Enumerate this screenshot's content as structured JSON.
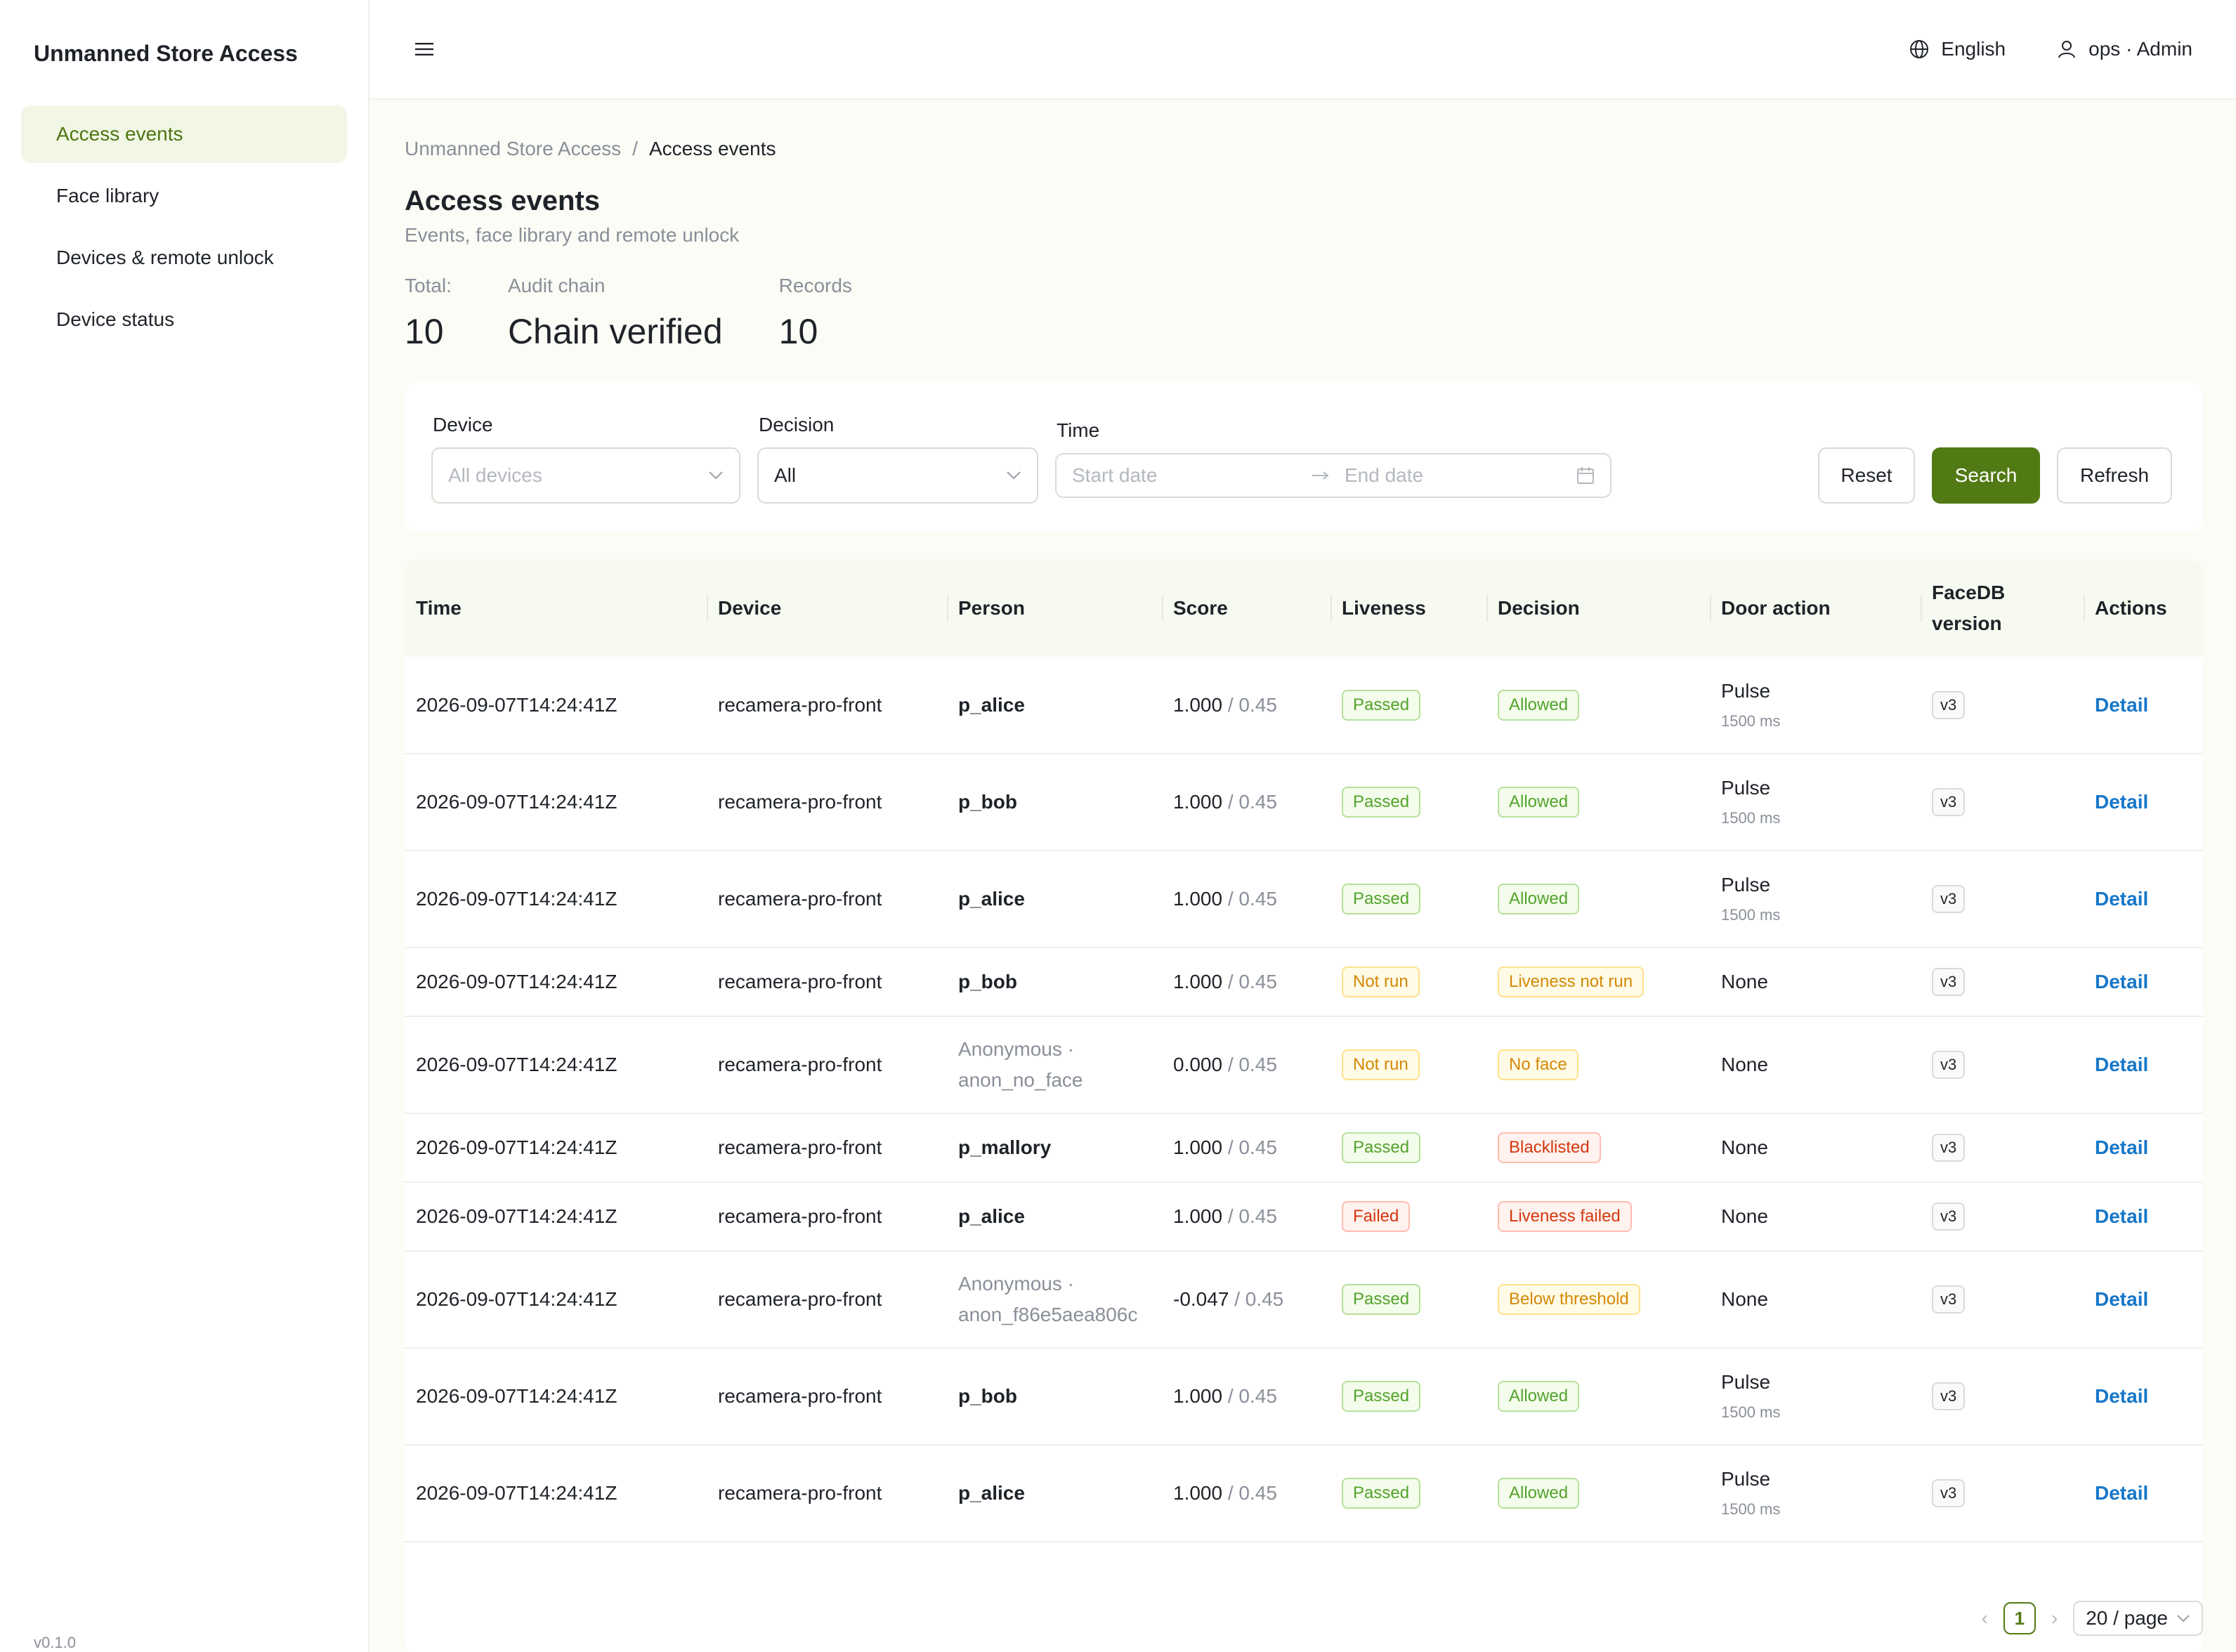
{
  "sidebar": {
    "brand": "Unmanned Store Access",
    "items": [
      {
        "label": "Access events"
      },
      {
        "label": "Face library"
      },
      {
        "label": "Devices & remote unlock"
      },
      {
        "label": "Device status"
      }
    ],
    "version": "v0.1.0"
  },
  "topbar": {
    "language": "English",
    "user": "ops · Admin"
  },
  "breadcrumb": {
    "root": "Unmanned Store Access",
    "separator": "/",
    "current": "Access events"
  },
  "page": {
    "title": "Access events",
    "subtitle": "Events, face library and remote unlock"
  },
  "stats": [
    {
      "label": "Total:",
      "value": "10"
    },
    {
      "label": "Audit chain",
      "value": "Chain verified"
    },
    {
      "label": "Records",
      "value": "10"
    }
  ],
  "filters": {
    "device_label": "Device",
    "device_placeholder": "All devices",
    "decision_label": "Decision",
    "decision_value": "All",
    "time_label": "Time",
    "start_placeholder": "Start date",
    "end_placeholder": "End date",
    "reset": "Reset",
    "search": "Search",
    "refresh": "Refresh"
  },
  "table": {
    "headers": {
      "time": "Time",
      "device": "Device",
      "person": "Person",
      "score": "Score",
      "liveness": "Liveness",
      "decision": "Decision",
      "door": "Door action",
      "facedb_1": "FaceDB",
      "facedb_2": "version",
      "actions": "Actions"
    },
    "rows": [
      {
        "time": "2026-09-07T14:24:41Z",
        "device": "recamera-pro-front",
        "person": "p_alice",
        "score": "1.000",
        "threshold": "/ 0.45",
        "liveness": "Passed",
        "decision": "Allowed",
        "door": "Pulse",
        "door_sub": "1500 ms",
        "version": "v3",
        "action": "Detail"
      },
      {
        "time": "2026-09-07T14:24:41Z",
        "device": "recamera-pro-front",
        "person": "p_bob",
        "score": "1.000",
        "threshold": "/ 0.45",
        "liveness": "Passed",
        "decision": "Allowed",
        "door": "Pulse",
        "door_sub": "1500 ms",
        "version": "v3",
        "action": "Detail"
      },
      {
        "time": "2026-09-07T14:24:41Z",
        "device": "recamera-pro-front",
        "person": "p_alice",
        "score": "1.000",
        "threshold": "/ 0.45",
        "liveness": "Passed",
        "decision": "Allowed",
        "door": "Pulse",
        "door_sub": "1500 ms",
        "version": "v3",
        "action": "Detail"
      },
      {
        "time": "2026-09-07T14:24:41Z",
        "device": "recamera-pro-front",
        "person": "p_bob",
        "score": "1.000",
        "threshold": "/ 0.45",
        "liveness": "Not run",
        "decision": "Liveness not run",
        "door": "None",
        "door_sub": "",
        "version": "v3",
        "action": "Detail"
      },
      {
        "time": "2026-09-07T14:24:41Z",
        "device": "recamera-pro-front",
        "person_anon_1": "Anonymous ·",
        "person_anon_2": "anon_no_face",
        "score": "0.000",
        "threshold": "/ 0.45",
        "liveness": "Not run",
        "decision": "No face",
        "door": "None",
        "door_sub": "",
        "version": "v3",
        "action": "Detail"
      },
      {
        "time": "2026-09-07T14:24:41Z",
        "device": "recamera-pro-front",
        "person": "p_mallory",
        "score": "1.000",
        "threshold": "/ 0.45",
        "liveness": "Passed",
        "decision": "Blacklisted",
        "door": "None",
        "door_sub": "",
        "version": "v3",
        "action": "Detail"
      },
      {
        "time": "2026-09-07T14:24:41Z",
        "device": "recamera-pro-front",
        "person": "p_alice",
        "score": "1.000",
        "threshold": "/ 0.45",
        "liveness": "Failed",
        "decision": "Liveness failed",
        "door": "None",
        "door_sub": "",
        "version": "v3",
        "action": "Detail"
      },
      {
        "time": "2026-09-07T14:24:41Z",
        "device": "recamera-pro-front",
        "person_anon_1": "Anonymous ·",
        "person_anon_2": "anon_f86e5aea806c",
        "score": "-0.047",
        "threshold": "/ 0.45",
        "liveness": "Passed",
        "decision": "Below threshold",
        "door": "None",
        "door_sub": "",
        "version": "v3",
        "action": "Detail"
      },
      {
        "time": "2026-09-07T14:24:41Z",
        "device": "recamera-pro-front",
        "person": "p_bob",
        "score": "1.000",
        "threshold": "/ 0.45",
        "liveness": "Passed",
        "decision": "Allowed",
        "door": "Pulse",
        "door_sub": "1500 ms",
        "version": "v3",
        "action": "Detail"
      },
      {
        "time": "2026-09-07T14:24:41Z",
        "device": "recamera-pro-front",
        "person": "p_alice",
        "score": "1.000",
        "threshold": "/ 0.45",
        "liveness": "Passed",
        "decision": "Allowed",
        "door": "Pulse",
        "door_sub": "1500 ms",
        "version": "v3",
        "action": "Detail"
      }
    ]
  },
  "pagination": {
    "current": "1",
    "prev": "‹",
    "next": "›",
    "page_size": "20 / page"
  },
  "colors": {
    "accent": "#527a14",
    "nav_active_bg": "#f1f7e4",
    "link": "#1677c8",
    "tag_green": "#52a32a",
    "tag_gold": "#d48806",
    "tag_red": "#d4380d"
  }
}
